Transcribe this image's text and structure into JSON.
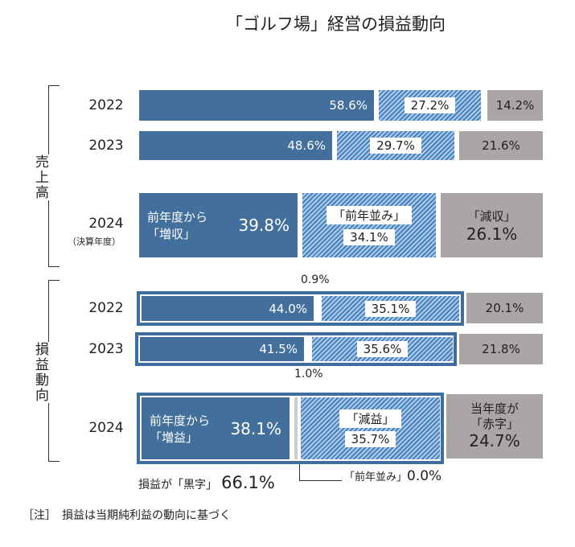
{
  "chart_data": {
    "type": "bar",
    "stacked": true,
    "orientation": "horizontal",
    "title": "「ゴルフ場」経営の損益動向",
    "groups": [
      {
        "name": "売上高",
        "rows": [
          {
            "year": "2022",
            "values": {
              "increase": 58.6,
              "flat": 27.2,
              "decrease": 14.2
            },
            "labels": [
              "58.6%",
              "27.2%",
              "14.2%"
            ]
          },
          {
            "year": "2023",
            "values": {
              "increase": 48.6,
              "flat": 29.7,
              "decrease": 21.6
            },
            "labels": [
              "48.6%",
              "29.7%",
              "21.6%"
            ]
          },
          {
            "year": "2024",
            "year_note": "（決算年度）",
            "values": {
              "increase": 39.8,
              "flat": 34.1,
              "decrease": 26.1
            },
            "labels": [
              "39.8%",
              "34.1%",
              "26.1%"
            ],
            "category_labels": [
              "前年度から",
              "「増収」",
              "「前年並み」",
              "「減収」"
            ]
          }
        ]
      },
      {
        "name": "損益動向",
        "rows": [
          {
            "year": "2022",
            "values": {
              "increase": 44.0,
              "flat": 0.9,
              "decrease": 35.1,
              "loss": 20.1
            },
            "labels": [
              "44.0%",
              "0.9%",
              "35.1%",
              "20.1%"
            ]
          },
          {
            "year": "2023",
            "values": {
              "increase": 41.5,
              "flat": 1.0,
              "decrease": 35.6,
              "loss": 21.8
            },
            "labels": [
              "41.5%",
              "1.0%",
              "35.6%",
              "21.8%"
            ]
          },
          {
            "year": "2024",
            "values": {
              "increase": 38.1,
              "flat": 0.0,
              "decrease": 35.7,
              "loss": 24.7
            },
            "labels": [
              "38.1%",
              "0.0%",
              "35.7%",
              "24.7%"
            ],
            "category_labels": [
              "前年度から",
              "「増益」",
              "「前年並み」",
              "「減益」",
              "当年度が",
              "「赤字」"
            ]
          }
        ]
      }
    ],
    "profit_total_label": "損益が「黒字」",
    "profit_total": "66.1%",
    "colors": {
      "increase": "#426f9b",
      "flat": "#d8dde3",
      "decrease": "hatched #4a7fb8/#a9cdef",
      "loss": "#aaa6a5"
    },
    "note": "［注］　損益は当期純利益の動向に基づく"
  }
}
